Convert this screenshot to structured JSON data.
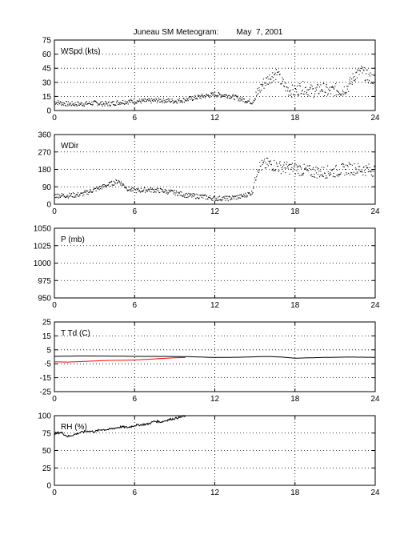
{
  "figure": {
    "title": "Juneau SM Meteogram:        May  7, 2001"
  },
  "chart_data": [
    {
      "type": "scatter",
      "label": "WSpd (kts)",
      "xlim": [
        0,
        24
      ],
      "ylim": [
        0,
        75
      ],
      "xticks": [
        0,
        6,
        12,
        18,
        24
      ],
      "yticks": [
        0,
        15,
        30,
        45,
        60,
        75
      ],
      "grid": true,
      "series": [
        {
          "color": "#000000",
          "marker": "dot",
          "points": [
            [
              0,
              9
            ],
            [
              1,
              7
            ],
            [
              2,
              7
            ],
            [
              3,
              8
            ],
            [
              4,
              7
            ],
            [
              5,
              9
            ],
            [
              6,
              10
            ],
            [
              7,
              10
            ],
            [
              8,
              11
            ],
            [
              9,
              10
            ],
            [
              10,
              12
            ],
            [
              11,
              15
            ],
            [
              12,
              17
            ],
            [
              13,
              16
            ],
            [
              14,
              12
            ],
            [
              14.8,
              9
            ],
            [
              15.2,
              18
            ],
            [
              15.6,
              28
            ],
            [
              16.2,
              36
            ],
            [
              16.6,
              40
            ],
            [
              17.0,
              30
            ],
            [
              17.5,
              22
            ],
            [
              18,
              20
            ],
            [
              18.5,
              25
            ],
            [
              19,
              22
            ],
            [
              19.5,
              20
            ],
            [
              20,
              24
            ],
            [
              20.5,
              20
            ],
            [
              21,
              22
            ],
            [
              21.5,
              21
            ],
            [
              22,
              26
            ],
            [
              22.5,
              38
            ],
            [
              23,
              42
            ],
            [
              23.5,
              35
            ],
            [
              24,
              33
            ]
          ]
        }
      ]
    },
    {
      "type": "scatter",
      "label": "WDir",
      "xlim": [
        0,
        24
      ],
      "ylim": [
        0,
        360
      ],
      "xticks": [
        0,
        6,
        12,
        18,
        24
      ],
      "yticks": [
        0,
        90,
        180,
        270,
        360
      ],
      "grid": true,
      "series": [
        {
          "color": "#000000",
          "marker": "dot",
          "points": [
            [
              0,
              45
            ],
            [
              1,
              45
            ],
            [
              2,
              50
            ],
            [
              3,
              75
            ],
            [
              4,
              100
            ],
            [
              4.8,
              120
            ],
            [
              5.5,
              80
            ],
            [
              6,
              70
            ],
            [
              7,
              75
            ],
            [
              8,
              70
            ],
            [
              9,
              60
            ],
            [
              10,
              45
            ],
            [
              11,
              40
            ],
            [
              12,
              30
            ],
            [
              13,
              30
            ],
            [
              14,
              40
            ],
            [
              14.8,
              60
            ],
            [
              15.2,
              190
            ],
            [
              16,
              210
            ],
            [
              17,
              190
            ],
            [
              18,
              185
            ],
            [
              19,
              170
            ],
            [
              20,
              165
            ],
            [
              21,
              170
            ],
            [
              22,
              185
            ],
            [
              23,
              180
            ],
            [
              24,
              175
            ]
          ]
        }
      ]
    },
    {
      "type": "line",
      "label": "P (mb)",
      "xlim": [
        0,
        24
      ],
      "ylim": [
        950,
        1050
      ],
      "xticks": [
        0,
        6,
        12,
        18,
        24
      ],
      "yticks": [
        950,
        975,
        1000,
        1025,
        1050
      ],
      "grid": true,
      "series": []
    },
    {
      "type": "line",
      "label": "T Td (C)",
      "xlim": [
        0,
        24
      ],
      "ylim": [
        -25,
        25
      ],
      "xticks": [
        0,
        6,
        12,
        18,
        24
      ],
      "yticks": [
        -25,
        -15,
        -5,
        5,
        15,
        25
      ],
      "grid": true,
      "series": [
        {
          "color": "#000000",
          "points": [
            [
              0,
              0.3
            ],
            [
              2,
              0.6
            ],
            [
              4,
              0.5
            ],
            [
              6,
              0.3
            ],
            [
              8,
              0.3
            ],
            [
              10,
              0.1
            ],
            [
              12,
              -0.5
            ],
            [
              14,
              -0.3
            ],
            [
              15,
              0
            ],
            [
              16,
              0.2
            ],
            [
              17,
              -0.2
            ],
            [
              18,
              -1
            ],
            [
              20,
              -0.5
            ],
            [
              22,
              -0.2
            ],
            [
              24,
              -0.4
            ]
          ]
        },
        {
          "color": "#ff0000",
          "points": [
            [
              0,
              -3.6
            ],
            [
              1,
              -3.8
            ],
            [
              2,
              -3.4
            ],
            [
              3,
              -3.0
            ],
            [
              4,
              -2.6
            ],
            [
              5,
              -2.5
            ],
            [
              6,
              -2.3
            ],
            [
              7,
              -1.8
            ],
            [
              8,
              -1.2
            ],
            [
              9,
              -0.7
            ],
            [
              9.8,
              -0.5
            ]
          ]
        }
      ]
    },
    {
      "type": "line",
      "label": "RH (%)",
      "xlim": [
        0,
        24
      ],
      "ylim": [
        0,
        100
      ],
      "xticks": [
        0,
        6,
        12,
        18,
        24
      ],
      "yticks": [
        0,
        25,
        50,
        75,
        100
      ],
      "grid": true,
      "series": [
        {
          "color": "#000000",
          "points": [
            [
              0,
              74
            ],
            [
              0.5,
              76
            ],
            [
              1,
              70
            ],
            [
              1.5,
              73
            ],
            [
              2,
              76
            ],
            [
              2.5,
              78
            ],
            [
              3,
              77
            ],
            [
              3.5,
              80
            ],
            [
              4,
              80
            ],
            [
              4.5,
              82
            ],
            [
              5,
              84
            ],
            [
              5.5,
              83
            ],
            [
              6,
              86
            ],
            [
              6.5,
              87
            ],
            [
              7,
              88
            ],
            [
              7.5,
              92
            ],
            [
              8,
              91
            ],
            [
              8.5,
              94
            ],
            [
              9,
              96
            ],
            [
              9.5,
              98
            ],
            [
              9.8,
              100
            ]
          ]
        }
      ]
    }
  ]
}
